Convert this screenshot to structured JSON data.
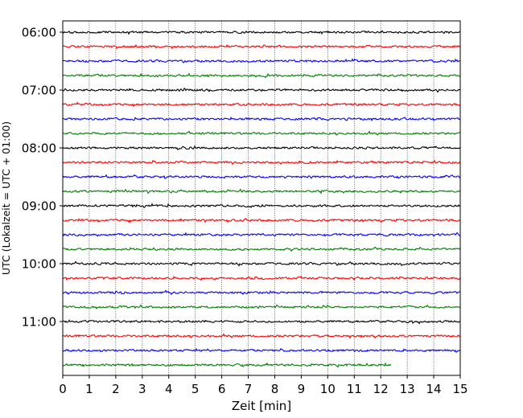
{
  "chart_data": {
    "type": "line",
    "title": "",
    "xlabel": "Zeit  [min]",
    "ylabel": "UTC (Lokalzeit = UTC + 01:00)",
    "xlim": [
      0,
      15
    ],
    "xticks": [
      0,
      1,
      2,
      3,
      4,
      5,
      6,
      7,
      8,
      9,
      10,
      11,
      12,
      13,
      14,
      15
    ],
    "yticks": [
      "06:00",
      "07:00",
      "08:00",
      "09:00",
      "10:00",
      "11:00"
    ],
    "grid": "vertical dotted",
    "trace_colors": [
      "#000000",
      "#ff0000",
      "#0000ff",
      "#008000"
    ],
    "series": [
      {
        "start": "06:00",
        "x_end": 15
      },
      {
        "start": "06:15",
        "x_end": 15
      },
      {
        "start": "06:30",
        "x_end": 15
      },
      {
        "start": "06:45",
        "x_end": 15
      },
      {
        "start": "07:00",
        "x_end": 15
      },
      {
        "start": "07:15",
        "x_end": 15
      },
      {
        "start": "07:30",
        "x_end": 15
      },
      {
        "start": "07:45",
        "x_end": 15
      },
      {
        "start": "08:00",
        "x_end": 15
      },
      {
        "start": "08:15",
        "x_end": 15
      },
      {
        "start": "08:30",
        "x_end": 15
      },
      {
        "start": "08:45",
        "x_end": 15
      },
      {
        "start": "09:00",
        "x_end": 15
      },
      {
        "start": "09:15",
        "x_end": 15
      },
      {
        "start": "09:30",
        "x_end": 15
      },
      {
        "start": "09:45",
        "x_end": 15
      },
      {
        "start": "10:00",
        "x_end": 15
      },
      {
        "start": "10:15",
        "x_end": 15
      },
      {
        "start": "10:30",
        "x_end": 15
      },
      {
        "start": "10:45",
        "x_end": 15
      },
      {
        "start": "11:00",
        "x_end": 15
      },
      {
        "start": "11:15",
        "x_end": 15
      },
      {
        "start": "11:30",
        "x_end": 15
      },
      {
        "start": "11:45",
        "x_end": 12.4
      }
    ]
  }
}
